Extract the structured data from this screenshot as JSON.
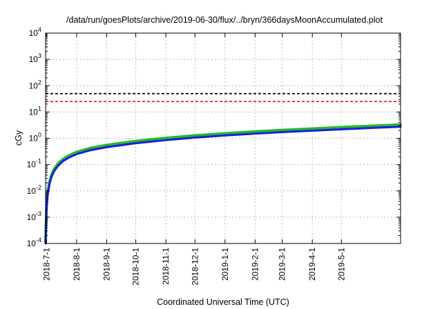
{
  "chart_data": {
    "type": "line",
    "title": "/data/run/goesPlots/archive/2019-06-30/flux/../bryn/366daysMoonAccumulated.plot",
    "xlabel": "Coordinated Universal Time (UTC)",
    "ylabel": "cGy",
    "y_scale": "log",
    "ylim": [
      0.0001,
      10000
    ],
    "xlim": [
      "2018-06-30",
      "2019-07-01"
    ],
    "grid": true,
    "legend": "none",
    "y_ticks": [
      {
        "value": 0.0001,
        "base": "10",
        "exp": "-4"
      },
      {
        "value": 0.001,
        "base": "10",
        "exp": "-3"
      },
      {
        "value": 0.01,
        "base": "10",
        "exp": "-2"
      },
      {
        "value": 0.1,
        "base": "10",
        "exp": "-1"
      },
      {
        "value": 1,
        "base": "10",
        "exp": "0"
      },
      {
        "value": 10,
        "base": "10",
        "exp": "1"
      },
      {
        "value": 100,
        "base": "10",
        "exp": "2"
      },
      {
        "value": 1000,
        "base": "10",
        "exp": "3"
      },
      {
        "value": 10000,
        "base": "10",
        "exp": "4"
      }
    ],
    "x_ticks": [
      {
        "date": "2018-07-01",
        "label": "2018-7-1"
      },
      {
        "date": "2018-08-01",
        "label": "2018-8-1"
      },
      {
        "date": "2018-09-01",
        "label": "2018-9-1"
      },
      {
        "date": "2018-10-01",
        "label": "2018-10-1"
      },
      {
        "date": "2018-11-01",
        "label": "2018-11-1"
      },
      {
        "date": "2018-12-01",
        "label": "2018-12-1"
      },
      {
        "date": "2019-01-01",
        "label": "2019-1-1"
      },
      {
        "date": "2019-02-01",
        "label": "2019-2-1"
      },
      {
        "date": "2019-03-01",
        "label": "2019-3-1"
      },
      {
        "date": "2019-04-01",
        "label": "2019-4-1"
      },
      {
        "date": "2019-05-01",
        "label": "2019-5-1"
      }
    ],
    "thresholds": [
      {
        "value": 50,
        "color": "#000000",
        "style": "dashed"
      },
      {
        "value": 25,
        "color": "#ee1111",
        "style": "dashed"
      }
    ],
    "series": [
      {
        "color": "#22bb22",
        "x": [
          "2018-06-30",
          "2018-07-01",
          "2018-07-02",
          "2018-07-04",
          "2018-07-06",
          "2018-07-09",
          "2018-07-13",
          "2018-07-18",
          "2018-07-24",
          "2018-08-01",
          "2018-08-15",
          "2018-09-01",
          "2018-10-01",
          "2018-11-01",
          "2018-12-01",
          "2019-01-01",
          "2019-02-01",
          "2019-03-01",
          "2019-04-01",
          "2019-05-01",
          "2019-06-01",
          "2019-07-01"
        ],
        "y": [
          0.00012,
          0.0025,
          0.008,
          0.022,
          0.04,
          0.07,
          0.11,
          0.16,
          0.22,
          0.3,
          0.42,
          0.55,
          0.78,
          1.02,
          1.27,
          1.53,
          1.8,
          2.05,
          2.32,
          2.62,
          2.95,
          3.3
        ]
      },
      {
        "color": "#1a1aee",
        "x": [
          "2018-06-30",
          "2018-07-01",
          "2018-07-02",
          "2018-07-04",
          "2018-07-06",
          "2018-07-09",
          "2018-07-13",
          "2018-07-18",
          "2018-07-24",
          "2018-08-01",
          "2018-08-15",
          "2018-09-01",
          "2018-10-01",
          "2018-11-01",
          "2018-12-01",
          "2019-01-01",
          "2019-02-01",
          "2019-03-01",
          "2019-04-01",
          "2019-05-01",
          "2019-06-01",
          "2019-07-01"
        ],
        "y": [
          0.0001,
          0.002,
          0.0065,
          0.018,
          0.033,
          0.058,
          0.092,
          0.135,
          0.185,
          0.25,
          0.35,
          0.46,
          0.65,
          0.85,
          1.06,
          1.28,
          1.5,
          1.72,
          1.95,
          2.2,
          2.47,
          2.75
        ]
      }
    ]
  }
}
